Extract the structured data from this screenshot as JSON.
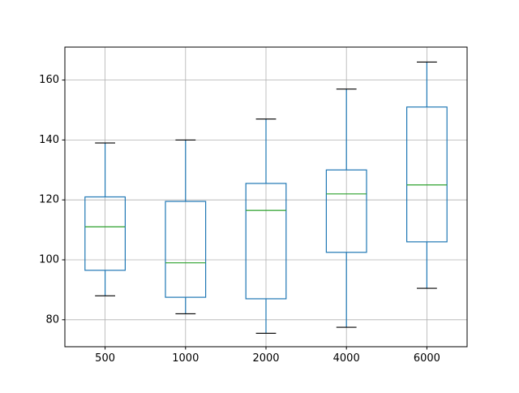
{
  "colors": {
    "box": "#1f77b4",
    "median": "#2ca02c",
    "cap": "#000000",
    "grid": "#b0b0b0",
    "axis": "#000000"
  },
  "chart_data": {
    "type": "box",
    "title": "",
    "xlabel": "",
    "ylabel": "",
    "categories": [
      "500",
      "1000",
      "2000",
      "4000",
      "6000"
    ],
    "grid": true,
    "ylim": [
      71,
      171
    ],
    "yticks": [
      80,
      100,
      120,
      140,
      160
    ],
    "ytick_labels": [
      "80",
      "100",
      "120",
      "140",
      "160"
    ],
    "boxes": [
      {
        "label": "500",
        "whisker_low": 88.0,
        "q1": 96.5,
        "median": 111.0,
        "q3": 121.0,
        "whisker_high": 139.0
      },
      {
        "label": "1000",
        "whisker_low": 82.0,
        "q1": 87.5,
        "median": 99.0,
        "q3": 119.5,
        "whisker_high": 140.0
      },
      {
        "label": "2000",
        "whisker_low": 75.5,
        "q1": 87.0,
        "median": 116.5,
        "q3": 125.5,
        "whisker_high": 147.0
      },
      {
        "label": "4000",
        "whisker_low": 77.5,
        "q1": 102.5,
        "median": 122.0,
        "q3": 130.0,
        "whisker_high": 157.0
      },
      {
        "label": "6000",
        "whisker_low": 90.5,
        "q1": 106.0,
        "median": 125.0,
        "q3": 151.0,
        "whisker_high": 166.0
      }
    ]
  }
}
